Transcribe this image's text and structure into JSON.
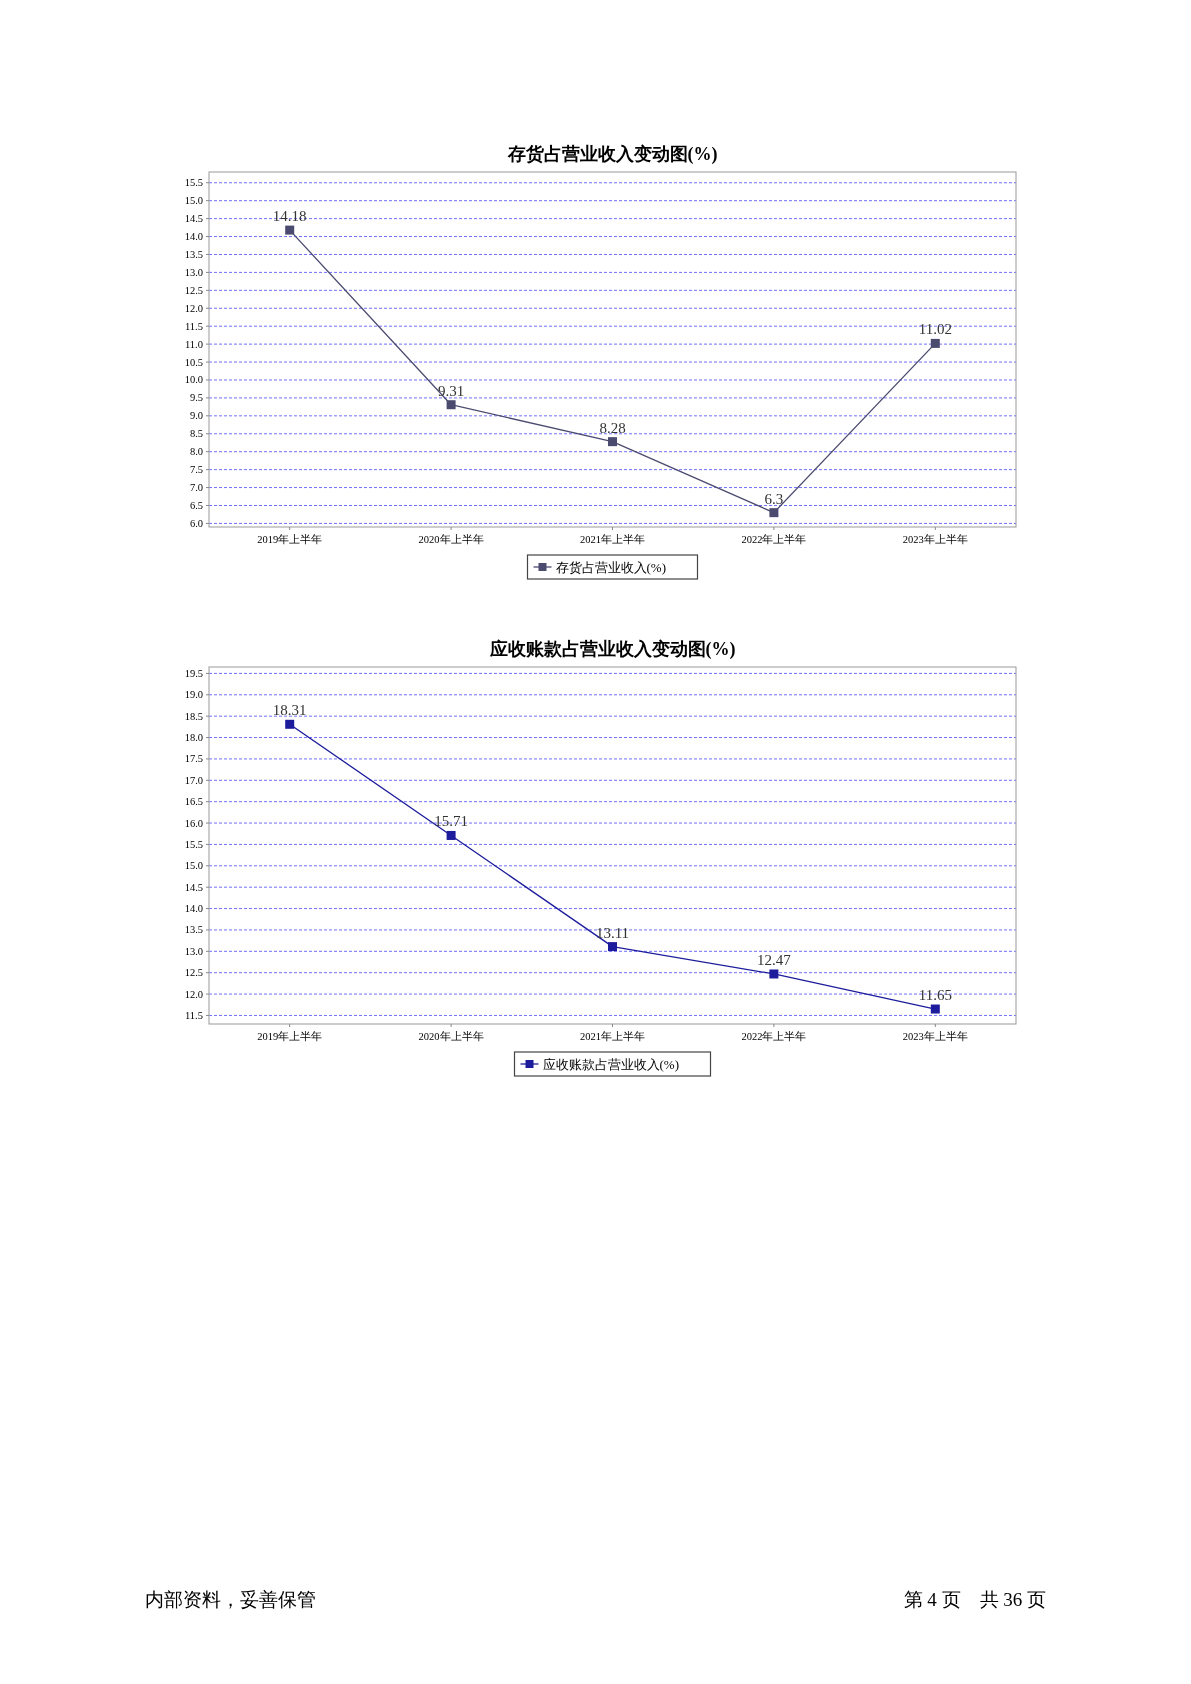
{
  "chart_data": [
    {
      "type": "line",
      "title": "存货占营业收入变动图(%)",
      "categories": [
        "2019年上半年",
        "2020年上半年",
        "2021年上半年",
        "2022年上半年",
        "2023年上半年"
      ],
      "series": [
        {
          "name": "存货占营业收入(%)",
          "color": "#4b4b70",
          "values": [
            14.18,
            9.31,
            8.28,
            6.3,
            11.02
          ]
        }
      ],
      "ylim": [
        5.9,
        15.8
      ],
      "yticks": [
        {
          "value": 6,
          "label": "6.0"
        },
        {
          "value": 6.5,
          "label": "6.5"
        },
        {
          "value": 7,
          "label": "7.0"
        },
        {
          "value": 7.5,
          "label": "7.5"
        },
        {
          "value": 8,
          "label": "8.0"
        },
        {
          "value": 8.5,
          "label": "8.5"
        },
        {
          "value": 9,
          "label": "9.0"
        },
        {
          "value": 9.5,
          "label": "9.5"
        },
        {
          "value": 10,
          "label": "10.0"
        },
        {
          "value": 10.5,
          "label": "10.5"
        },
        {
          "value": 11,
          "label": "11.0"
        },
        {
          "value": 11.5,
          "label": "11.5"
        },
        {
          "value": 12,
          "label": "12.0"
        },
        {
          "value": 12.5,
          "label": "12.5"
        },
        {
          "value": 13,
          "label": "13.0"
        },
        {
          "value": 13.5,
          "label": "13.5"
        },
        {
          "value": 14,
          "label": "14.0"
        },
        {
          "value": 14.5,
          "label": "14.5"
        },
        {
          "value": 15,
          "label": "15.0"
        },
        {
          "value": 15.5,
          "label": "15.5"
        }
      ],
      "grid": "y",
      "legend": "bottom",
      "marker": "square",
      "line_style": "solid",
      "data_labels": true
    },
    {
      "type": "line",
      "title": "应收账款占营业收入变动图(%)",
      "categories": [
        "2019年上半年",
        "2020年上半年",
        "2021年上半年",
        "2022年上半年",
        "2023年上半年"
      ],
      "series": [
        {
          "name": "应收账款占营业收入(%)",
          "color": "#1c1c9c",
          "values": [
            18.31,
            15.71,
            13.11,
            12.47,
            11.65
          ]
        }
      ],
      "ylim": [
        11.3,
        19.65
      ],
      "yticks": [
        {
          "value": 11.5,
          "label": "11.5"
        },
        {
          "value": 12,
          "label": "12.0"
        },
        {
          "value": 12.5,
          "label": "12.5"
        },
        {
          "value": 13,
          "label": "13.0"
        },
        {
          "value": 13.5,
          "label": "13.5"
        },
        {
          "value": 14,
          "label": "14.0"
        },
        {
          "value": 14.5,
          "label": "14.5"
        },
        {
          "value": 15,
          "label": "15.0"
        },
        {
          "value": 15.5,
          "label": "15.5"
        },
        {
          "value": 16,
          "label": "16.0"
        },
        {
          "value": 16.5,
          "label": "16.5"
        },
        {
          "value": 17,
          "label": "17.0"
        },
        {
          "value": 17.5,
          "label": "17.5"
        },
        {
          "value": 18,
          "label": "18.0"
        },
        {
          "value": 18.5,
          "label": "18.5"
        },
        {
          "value": 19,
          "label": "19.0"
        },
        {
          "value": 19.5,
          "label": "19.5"
        }
      ],
      "grid": "y",
      "legend": "bottom",
      "marker": "square",
      "line_style": "solid",
      "data_labels": true,
      "annotations": [
        "内部资料，妥善保管",
        "第 4 页　共 36 页"
      ]
    }
  ]
}
